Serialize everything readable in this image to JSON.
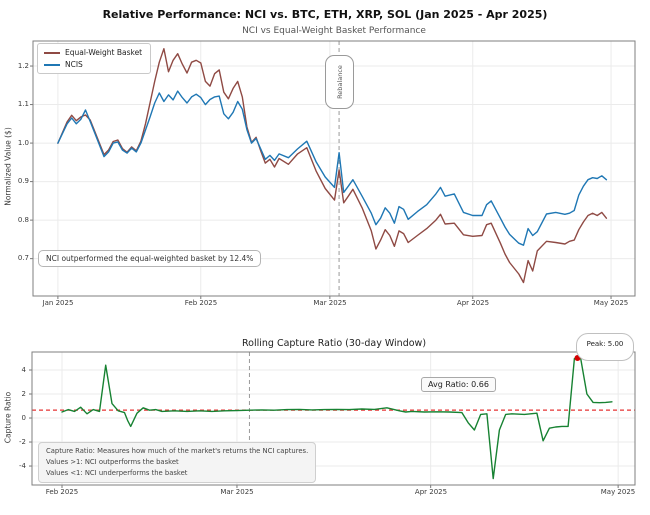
{
  "figure": {
    "title": "Relative Performance: NCI vs. BTC, ETH, XRP, SOL (Jan 2025 - Apr 2025)"
  },
  "colors": {
    "equal_weight": "#8f4a44",
    "ncis": "#1f77b4",
    "capture": "#178232",
    "baseline_red": "#e53333",
    "peak_dot": "#d40000",
    "grid": "#ebebeb",
    "spine": "#7f7f7f",
    "vline": "#999999"
  },
  "chart_data": [
    {
      "type": "line",
      "title": "NCI vs Equal-Weight Basket Performance",
      "xlabel": "",
      "ylabel": "Normalized Value ($)",
      "x_unit": "days since Jan 1 2025",
      "xlim": [
        -5.4,
        125.2
      ],
      "ylim": [
        0.603,
        1.265
      ],
      "grid": true,
      "yticks": [
        0.7,
        0.8,
        0.9,
        1.0,
        1.1,
        1.2
      ],
      "ytick_labels": [
        "0.7",
        "0.8",
        "0.9",
        "1.0",
        "1.1",
        "1.2"
      ],
      "xticks": [
        0,
        31,
        59,
        90,
        120
      ],
      "xtick_labels": [
        "Jan 2025",
        "Feb 2025",
        "Mar 2025",
        "Apr 2025",
        "May 2025"
      ],
      "legend": {
        "position": "upper left",
        "entries": [
          "Equal-Weight Basket",
          "NCIS"
        ]
      },
      "rebalance_line": {
        "x": 61,
        "label": "Rebalance"
      },
      "annotation": "NCI outperformed the equal-weighted basket by 12.4%",
      "x": [
        0,
        2,
        3,
        4,
        5,
        6,
        7,
        8,
        10,
        11,
        12,
        13,
        14,
        15,
        16,
        17,
        18,
        19,
        20,
        21,
        22,
        23,
        24,
        25,
        26,
        27,
        28,
        29,
        30,
        31,
        32,
        33,
        34,
        35,
        36,
        37,
        38,
        39,
        40,
        41,
        42,
        43,
        44,
        45,
        46,
        47,
        48,
        50,
        52,
        54,
        56,
        58,
        60,
        61,
        62,
        63,
        64,
        66,
        68,
        69,
        70,
        71,
        72,
        73,
        74,
        75,
        76,
        78,
        80,
        82,
        83,
        84,
        86,
        88,
        90,
        92,
        93,
        94,
        96,
        97,
        98,
        100,
        101,
        102,
        103,
        104,
        106,
        108,
        110,
        111,
        112,
        113,
        114,
        115,
        116,
        117,
        118,
        119
      ],
      "series": [
        {
          "name": "Equal-Weight Basket",
          "color": "#8f4a44",
          "values": [
            1.0,
            1.055,
            1.072,
            1.058,
            1.068,
            1.073,
            1.06,
            1.03,
            0.97,
            0.982,
            1.004,
            1.008,
            0.986,
            0.976,
            0.99,
            0.98,
            1.005,
            1.05,
            1.105,
            1.16,
            1.21,
            1.245,
            1.185,
            1.215,
            1.232,
            1.205,
            1.182,
            1.21,
            1.215,
            1.208,
            1.16,
            1.148,
            1.18,
            1.19,
            1.132,
            1.115,
            1.142,
            1.16,
            1.12,
            1.042,
            1.002,
            1.015,
            0.98,
            0.948,
            0.958,
            0.938,
            0.96,
            0.945,
            0.972,
            0.988,
            0.928,
            0.882,
            0.852,
            0.93,
            0.845,
            0.862,
            0.88,
            0.832,
            0.772,
            0.725,
            0.748,
            0.775,
            0.76,
            0.732,
            0.772,
            0.765,
            0.742,
            0.76,
            0.778,
            0.8,
            0.815,
            0.79,
            0.792,
            0.762,
            0.758,
            0.76,
            0.788,
            0.792,
            0.74,
            0.712,
            0.69,
            0.66,
            0.638,
            0.695,
            0.668,
            0.72,
            0.745,
            0.742,
            0.738,
            0.745,
            0.748,
            0.775,
            0.795,
            0.812,
            0.818,
            0.812,
            0.82,
            0.805
          ]
        },
        {
          "name": "NCIS",
          "color": "#1f77b4",
          "values": [
            1.0,
            1.05,
            1.065,
            1.05,
            1.062,
            1.086,
            1.056,
            1.026,
            0.965,
            0.977,
            1.0,
            1.003,
            0.982,
            0.974,
            0.987,
            0.977,
            1.0,
            1.034,
            1.068,
            1.104,
            1.13,
            1.108,
            1.125,
            1.112,
            1.135,
            1.118,
            1.104,
            1.12,
            1.127,
            1.118,
            1.1,
            1.113,
            1.12,
            1.122,
            1.076,
            1.063,
            1.08,
            1.108,
            1.088,
            1.035,
            1.0,
            1.012,
            0.985,
            0.958,
            0.968,
            0.955,
            0.972,
            0.962,
            0.985,
            1.005,
            0.952,
            0.912,
            0.885,
            0.975,
            0.872,
            0.888,
            0.905,
            0.862,
            0.818,
            0.788,
            0.805,
            0.832,
            0.818,
            0.792,
            0.835,
            0.828,
            0.802,
            0.822,
            0.84,
            0.868,
            0.885,
            0.862,
            0.868,
            0.82,
            0.812,
            0.812,
            0.84,
            0.85,
            0.805,
            0.782,
            0.763,
            0.74,
            0.735,
            0.778,
            0.76,
            0.77,
            0.816,
            0.82,
            0.815,
            0.818,
            0.825,
            0.865,
            0.888,
            0.905,
            0.91,
            0.908,
            0.915,
            0.905
          ]
        }
      ]
    },
    {
      "type": "line",
      "title": "Rolling Capture Ratio (30-day Window)",
      "xlabel": "",
      "ylabel": "Capture Ratio",
      "x_unit": "days since Feb 1 2025",
      "xlim": [
        -4.8,
        91.7
      ],
      "ylim": [
        -5.58,
        5.5
      ],
      "grid": true,
      "yticks": [
        -4,
        -2,
        0,
        2,
        4
      ],
      "ytick_labels": [
        "-4",
        "-2",
        "0",
        "2",
        "4"
      ],
      "xticks": [
        0,
        28,
        59,
        89
      ],
      "xtick_labels": [
        "Feb 2025",
        "Mar 2025",
        "Apr 2025",
        "May 2025"
      ],
      "rebalance_line": {
        "x": 30
      },
      "baseline": {
        "y": 0.66,
        "color": "#e53333",
        "style": "dashed"
      },
      "avg_ratio_label": "Avg Ratio: 0.66",
      "peak_label": "Peak: 5.00",
      "peak_point": {
        "x": 82.5,
        "y": 5.0
      },
      "info_box": [
        "Capture Ratio: Measures how much of the market's returns the NCI captures.",
        "Values >1: NCI outperforms the basket",
        "Values <1: NCI underperforms the basket"
      ],
      "x": [
        0,
        1,
        2,
        3,
        4,
        5,
        6,
        7,
        8,
        9,
        10,
        10.5,
        11,
        12,
        13,
        14,
        15,
        16,
        18,
        20,
        22,
        24,
        26,
        28,
        30,
        32,
        34,
        36,
        38,
        40,
        42,
        44,
        46,
        48,
        50,
        52,
        54,
        55,
        56,
        58,
        60,
        62,
        64,
        65,
        66,
        67,
        68,
        69,
        70,
        71,
        72,
        74,
        76,
        77,
        78,
        79,
        80,
        81,
        82,
        82.5,
        83,
        84,
        85,
        86,
        87,
        88
      ],
      "series": [
        {
          "name": "Capture Ratio",
          "color": "#178232",
          "values": [
            0.5,
            0.7,
            0.55,
            0.9,
            0.35,
            0.7,
            0.55,
            4.4,
            1.2,
            0.6,
            0.45,
            -0.2,
            -0.7,
            0.4,
            0.85,
            0.65,
            0.7,
            0.55,
            0.6,
            0.55,
            0.6,
            0.55,
            0.6,
            0.62,
            0.65,
            0.68,
            0.65,
            0.7,
            0.72,
            0.68,
            0.7,
            0.72,
            0.7,
            0.75,
            0.72,
            0.85,
            0.6,
            0.5,
            0.55,
            0.5,
            0.52,
            0.5,
            0.45,
            -0.4,
            -1.0,
            0.3,
            0.35,
            -5.05,
            -1.0,
            0.3,
            0.35,
            0.3,
            0.4,
            -1.9,
            -0.85,
            -0.75,
            -0.7,
            -0.7,
            4.95,
            5.0,
            5.0,
            2.0,
            1.3,
            1.28,
            1.3,
            1.35
          ]
        }
      ]
    }
  ]
}
